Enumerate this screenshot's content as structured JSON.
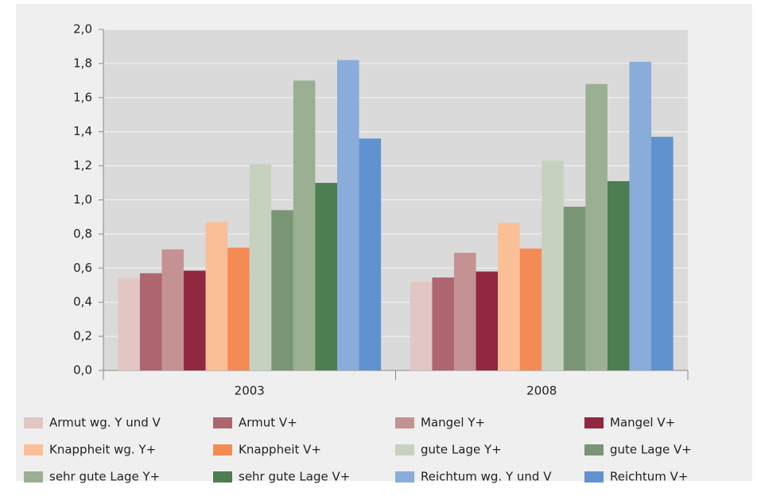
{
  "chart_data": {
    "type": "bar",
    "categories": [
      "2003",
      "2008"
    ],
    "series": [
      {
        "name": "Armut wg. Y und V",
        "color": "#e2c6c4",
        "values": [
          0.54,
          0.52
        ]
      },
      {
        "name": "Armut V+",
        "color": "#ad6670",
        "values": [
          0.57,
          0.545
        ]
      },
      {
        "name": "Mangel Y+",
        "color": "#c49293",
        "values": [
          0.71,
          0.69
        ]
      },
      {
        "name": "Mangel V+",
        "color": "#92283f",
        "values": [
          0.585,
          0.58
        ]
      },
      {
        "name": "Knappheit wg. Y+",
        "color": "#fbbf97",
        "values": [
          0.87,
          0.865
        ]
      },
      {
        "name": "Knappheit V+",
        "color": "#f58b54",
        "values": [
          0.72,
          0.715
        ]
      },
      {
        "name": "gute Lage Y+",
        "color": "#c6d2bf",
        "values": [
          1.21,
          1.23
        ]
      },
      {
        "name": "gute Lage V+",
        "color": "#7a9476",
        "values": [
          0.94,
          0.96
        ]
      },
      {
        "name": "sehr gute Lage Y+",
        "color": "#9bb093",
        "values": [
          1.7,
          1.68
        ]
      },
      {
        "name": "sehr gute Lage V+",
        "color": "#4f7d52",
        "values": [
          1.1,
          1.11
        ]
      },
      {
        "name": "Reichtum wg. Y und V",
        "color": "#8aacdb",
        "values": [
          1.82,
          1.81
        ]
      },
      {
        "name": "Reichtum V+",
        "color": "#5f92cf",
        "values": [
          1.36,
          1.37
        ]
      }
    ],
    "ylim": [
      0,
      2.0
    ],
    "yticks": [
      {
        "value": 0,
        "label": "0,0"
      },
      {
        "value": 0.2,
        "label": "0,2"
      },
      {
        "value": 0.4,
        "label": "0,4"
      },
      {
        "value": 0.6,
        "label": "0,6"
      },
      {
        "value": 0.8,
        "label": "0,8"
      },
      {
        "value": 1.0,
        "label": "1,0"
      },
      {
        "value": 1.2,
        "label": "1,2"
      },
      {
        "value": 1.4,
        "label": "1,4"
      },
      {
        "value": 1.6,
        "label": "1,6"
      },
      {
        "value": 1.8,
        "label": "1,8"
      },
      {
        "value": 2.0,
        "label": "2,0"
      }
    ],
    "grid": true
  }
}
